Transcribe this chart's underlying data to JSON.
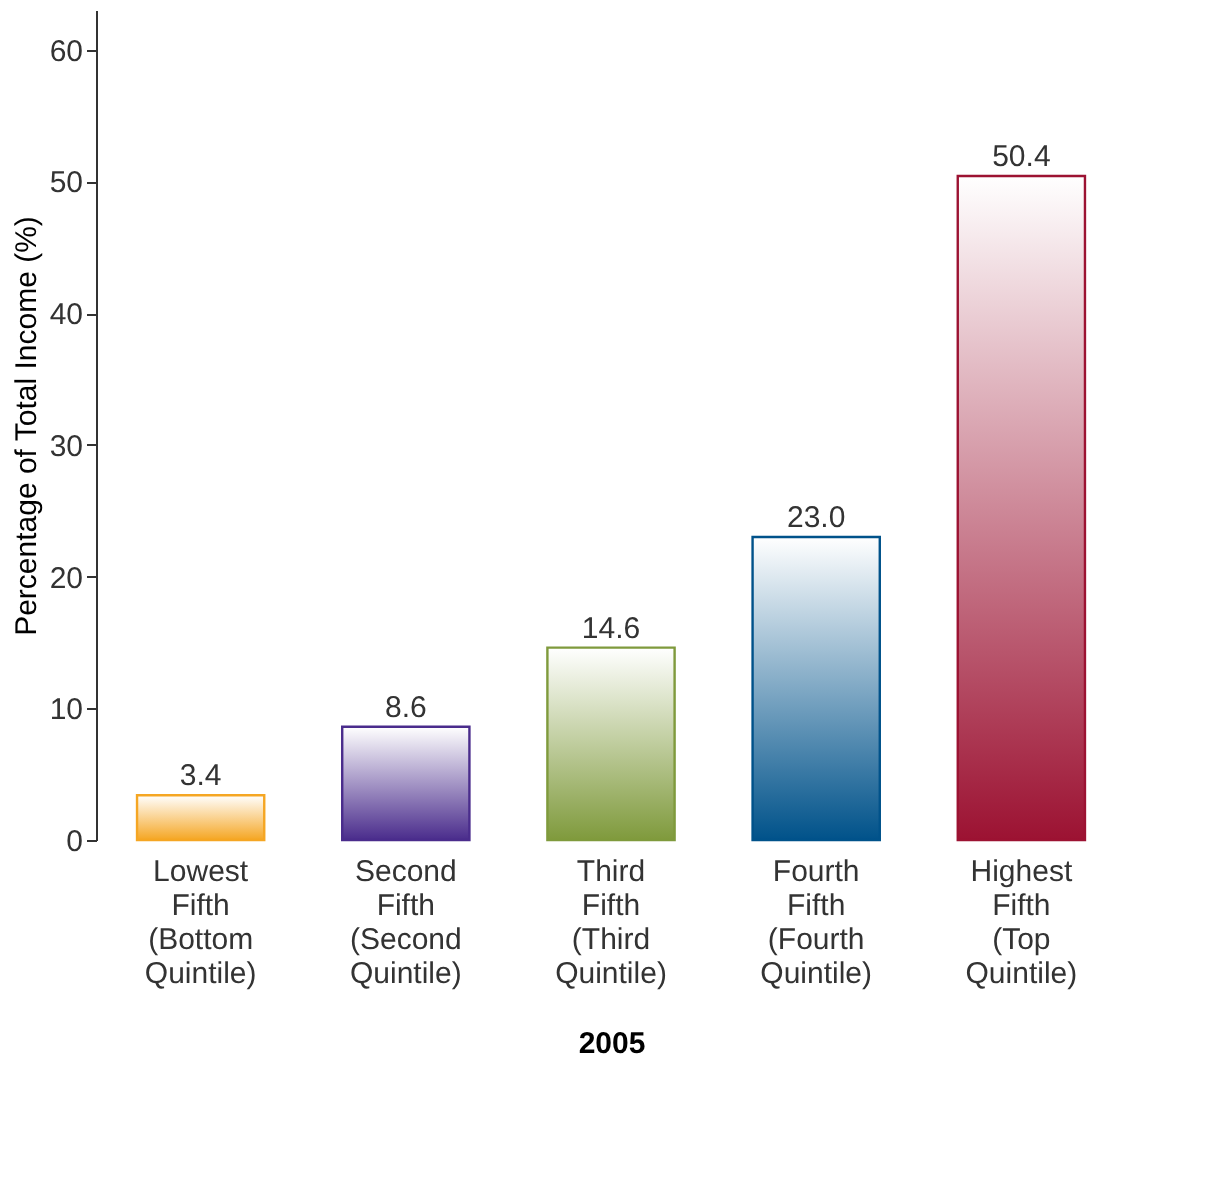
{
  "chart_data": {
    "type": "bar",
    "xlabel": "2005",
    "ylabel": "Percentage of Total Income (%)",
    "categories": [
      "Lowest\nFifth\n(Bottom\nQuintile)",
      "Second\nFifth\n(Second\nQuintile)",
      "Third\nFifth\n(Third\nQuintile)",
      "Fourth\nFifth\n(Fourth\nQuintile)",
      "Highest\nFifth\n(Top\nQuintile)"
    ],
    "values": [
      3.4,
      8.6,
      14.6,
      23.0,
      50.4
    ],
    "colors": [
      "#f5a623",
      "#4a2c8c",
      "#7f9a3c",
      "#00528a",
      "#9c1232"
    ],
    "value_labels": [
      "3.4",
      "8.6",
      "14.6",
      "23.0",
      "50.4"
    ],
    "ylim": [
      0,
      63
    ],
    "yticks": [
      0,
      10,
      20,
      30,
      40,
      50,
      60
    ],
    "grid": false
  }
}
